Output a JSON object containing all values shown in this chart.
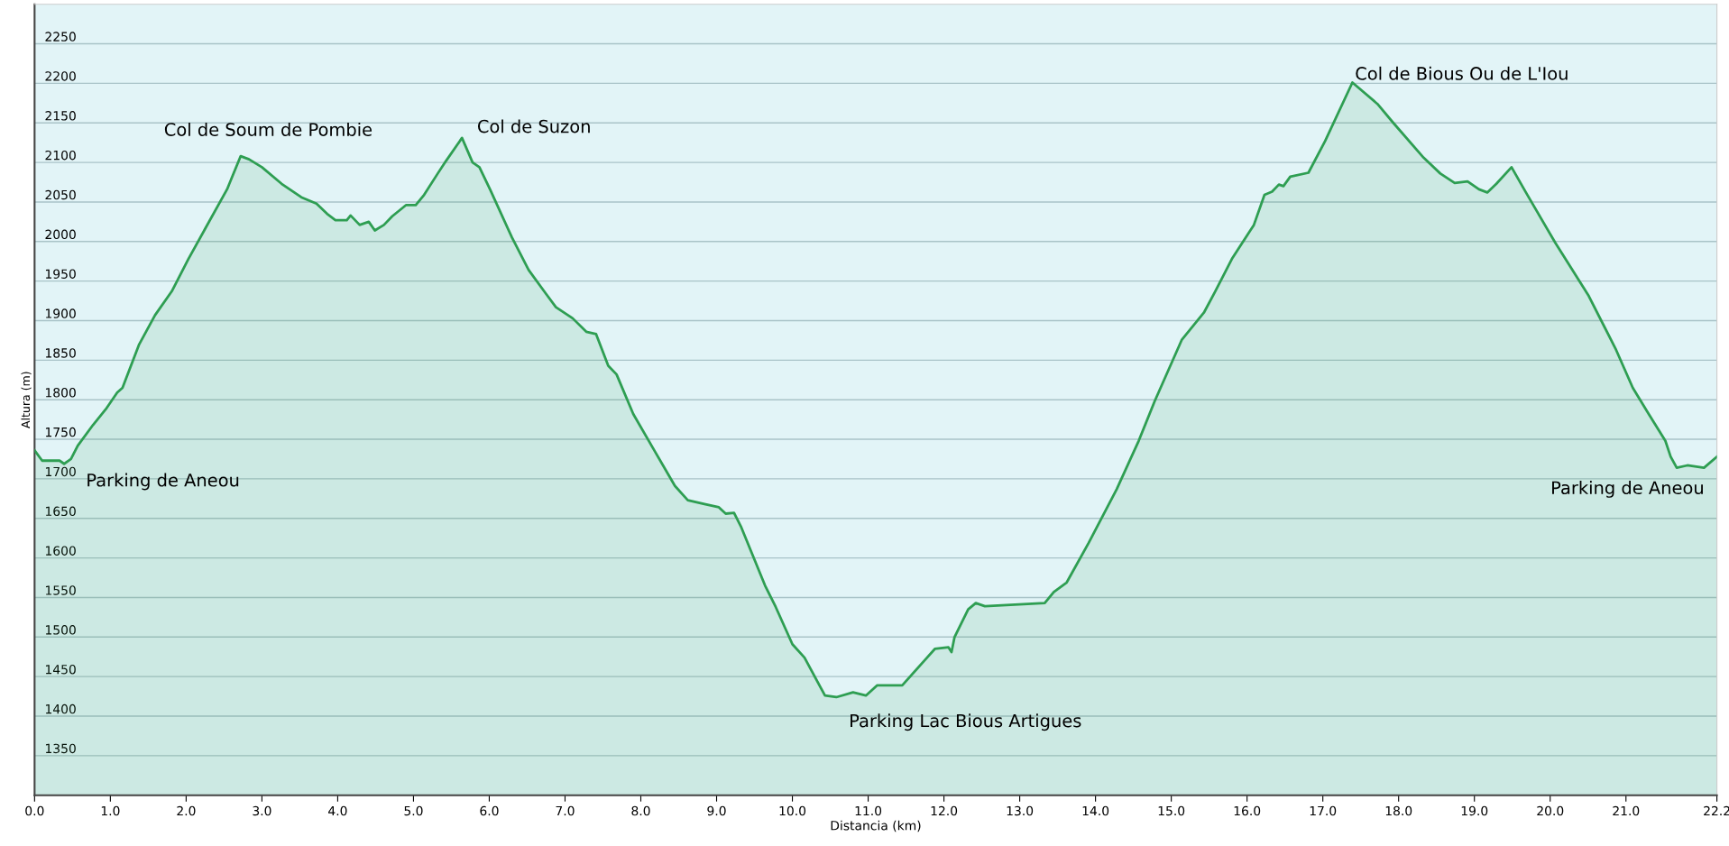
{
  "chart_data": {
    "type": "area",
    "xlabel": "Distancia (km)",
    "ylabel": "Altura (m)",
    "x": [
      0,
      0.1,
      0.33,
      0.39,
      0.48,
      0.57,
      0.77,
      0.94,
      1.09,
      1.16,
      1.38,
      1.59,
      1.81,
      2.03,
      2.25,
      2.54,
      2.72,
      2.83,
      3.0,
      3.26,
      3.52,
      3.72,
      3.86,
      3.97,
      4.12,
      4.17,
      4.29,
      4.41,
      4.49,
      4.61,
      4.72,
      4.9,
      5.03,
      5.14,
      5.32,
      5.43,
      5.64,
      5.78,
      5.87,
      6.01,
      6.3,
      6.52,
      6.74,
      6.88,
      7.1,
      7.28,
      7.41,
      7.57,
      7.68,
      7.9,
      8.19,
      8.45,
      8.62,
      8.84,
      9.03,
      9.12,
      9.23,
      9.32,
      9.64,
      9.78,
      10.0,
      10.16,
      10.43,
      10.58,
      10.8,
      10.97,
      11.12,
      11.45,
      11.74,
      11.88,
      12.06,
      12.1,
      12.14,
      12.32,
      12.42,
      12.54,
      13.33,
      13.45,
      13.62,
      13.91,
      14.28,
      14.57,
      14.78,
      15.14,
      15.43,
      15.58,
      15.8,
      16.09,
      16.23,
      16.33,
      16.42,
      16.48,
      16.57,
      16.81,
      17.03,
      17.39,
      17.72,
      17.93,
      18.33,
      18.55,
      18.74,
      18.91,
      19.06,
      19.17,
      19.29,
      19.49,
      19.68,
      20.07,
      20.51,
      20.87,
      21.09,
      21.3,
      21.52,
      21.59,
      21.67,
      21.81,
      22.03,
      22.2
    ],
    "series": [
      {
        "color": "#2e9e52",
        "values": [
          1736,
          1723,
          1723,
          1719,
          1725,
          1742,
          1768,
          1788,
          1809,
          1815,
          1870,
          1907,
          1937,
          1978,
          2016,
          2066,
          2108,
          2104,
          2094,
          2073,
          2056,
          2048,
          2035,
          2027,
          2027,
          2033,
          2021,
          2025,
          2014,
          2021,
          2032,
          2046,
          2046,
          2059,
          2086,
          2102,
          2131,
          2100,
          2094,
          2066,
          2005,
          1964,
          1935,
          1917,
          1903,
          1886,
          1883,
          1843,
          1832,
          1782,
          1734,
          1691,
          1673,
          1668,
          1664,
          1656,
          1657,
          1640,
          1565,
          1538,
          1491,
          1474,
          1426,
          1424,
          1430,
          1426,
          1439,
          1439,
          1470,
          1485,
          1487,
          1481,
          1500,
          1535,
          1543,
          1539,
          1543,
          1557,
          1569,
          1619,
          1687,
          1748,
          1798,
          1876,
          1910,
          1937,
          1978,
          2021,
          2059,
          2063,
          2072,
          2070,
          2082,
          2087,
          2127,
          2201,
          2174,
          2150,
          2106,
          2086,
          2074,
          2076,
          2066,
          2062,
          2073,
          2094,
          2062,
          1998,
          1931,
          1863,
          1815,
          1782,
          1748,
          1728,
          1714,
          1717,
          1714,
          1728
        ]
      }
    ],
    "xlim": [
      0,
      22.2
    ],
    "xticks": [
      {
        "value": 0,
        "label": "0.0"
      },
      {
        "value": 1,
        "label": "1.0"
      },
      {
        "value": 2,
        "label": "2.0"
      },
      {
        "value": 3,
        "label": "3.0"
      },
      {
        "value": 4,
        "label": "4.0"
      },
      {
        "value": 5,
        "label": "5.0"
      },
      {
        "value": 6,
        "label": "6.0"
      },
      {
        "value": 7,
        "label": "7.0"
      },
      {
        "value": 8,
        "label": "8.0"
      },
      {
        "value": 9,
        "label": "9.0"
      },
      {
        "value": 10,
        "label": "10.0"
      },
      {
        "value": 11,
        "label": "11.0"
      },
      {
        "value": 12,
        "label": "12.0"
      },
      {
        "value": 13,
        "label": "13.0"
      },
      {
        "value": 14,
        "label": "14.0"
      },
      {
        "value": 15,
        "label": "15.0"
      },
      {
        "value": 16,
        "label": "16.0"
      },
      {
        "value": 17,
        "label": "17.0"
      },
      {
        "value": 18,
        "label": "18.0"
      },
      {
        "value": 19,
        "label": "19.0"
      },
      {
        "value": 20,
        "label": "20.0"
      },
      {
        "value": 21,
        "label": "21.0"
      },
      {
        "value": 22.2,
        "label": "22.2"
      }
    ],
    "ylim": [
      1300,
      2300
    ],
    "yticks": [
      1350,
      1400,
      1450,
      1500,
      1550,
      1600,
      1650,
      1700,
      1750,
      1800,
      1850,
      1900,
      1950,
      2000,
      2050,
      2100,
      2150,
      2200,
      2250
    ],
    "grid": "y",
    "annotations": [
      {
        "text": "Parking de Aneou",
        "x": 0.48,
        "y": 1725
      },
      {
        "text": "Col de Soum de Pombie",
        "x": 2.72,
        "y": 2108
      },
      {
        "text": "Col de Suzon",
        "x": 5.64,
        "y": 2131
      },
      {
        "text": "Parking Lac Bious Artigues",
        "x": 10.58,
        "y": 1424
      },
      {
        "text": "Col de Bious Ou de L'Iou",
        "x": 17.39,
        "y": 2201
      },
      {
        "text": "Parking de Aneou",
        "x": 22.2,
        "y": 1728
      }
    ]
  }
}
